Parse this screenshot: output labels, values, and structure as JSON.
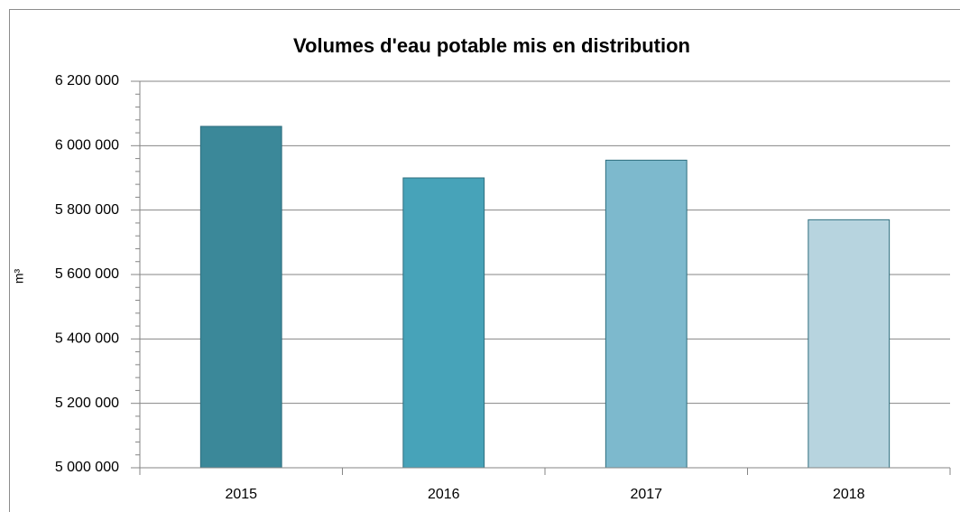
{
  "chart_data": {
    "type": "bar",
    "title": "Volumes d'eau potable mis en distribution",
    "y_label": "m³",
    "categories": [
      "2015",
      "2016",
      "2017",
      "2018"
    ],
    "values": [
      6060000,
      5900000,
      5955000,
      5770000
    ],
    "colors": [
      "#3b8899",
      "#47a3b9",
      "#7db9cd",
      "#b7d4df"
    ],
    "ylim": [
      5000000,
      6200000
    ],
    "yticks": [
      {
        "value": 5000000,
        "label": "5 000 000"
      },
      {
        "value": 5200000,
        "label": "5 200 000"
      },
      {
        "value": 5400000,
        "label": "5 400 000"
      },
      {
        "value": 5600000,
        "label": "5 600 000"
      },
      {
        "value": 5800000,
        "label": "5 800 000"
      },
      {
        "value": 6000000,
        "label": "6 000 000"
      },
      {
        "value": 6200000,
        "label": "6 200 000"
      }
    ],
    "grid": true
  }
}
